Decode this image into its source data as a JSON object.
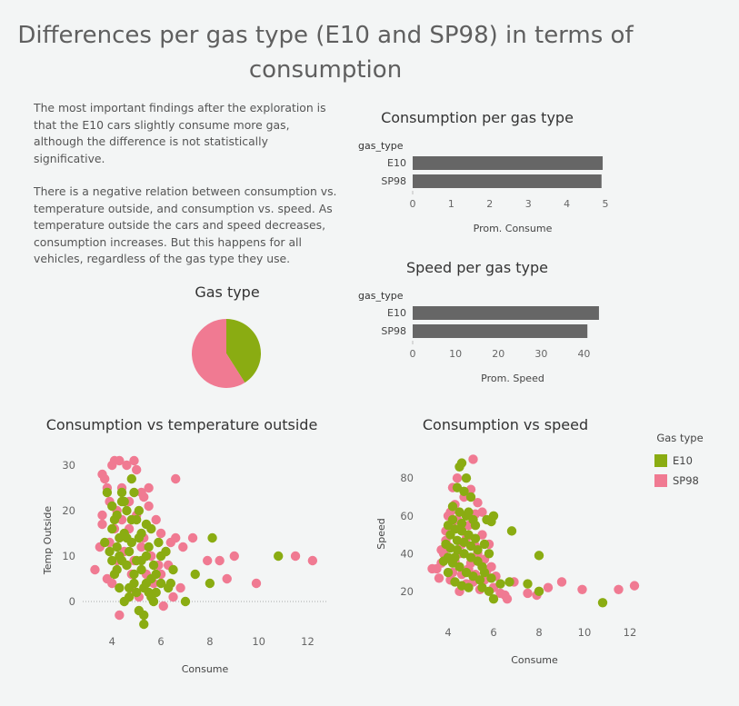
{
  "page": {
    "title_line1": "Differences per gas type (E10 and SP98) in terms of",
    "title_line2": "consumption",
    "paragraph1": "The most important findings after the exploration is that the E10 cars slightly consume more gas, although the difference is not statistically significative.",
    "paragraph2": "There is a negative relation between consumption vs. temperature outside, and consumption vs. speed. As temperature outside the cars and speed decreases, consumption increases. But this happens for all vehicles, regardless of the gas type they use."
  },
  "colors": {
    "E10": "#8aac12",
    "SP98": "#f07a92",
    "bar": "#666666",
    "axis": "#999999"
  },
  "legend": {
    "title": "Gas type",
    "items": [
      {
        "label": "E10",
        "color": "#8aac12"
      },
      {
        "label": "SP98",
        "color": "#f07a92"
      }
    ]
  },
  "chart_data": [
    {
      "id": "consumption_bar",
      "type": "bar",
      "orientation": "horizontal",
      "title": "Consumption per gas type",
      "row_header": "gas_type",
      "categories": [
        "E10",
        "SP98"
      ],
      "values": [
        4.93,
        4.9
      ],
      "xlabel": "Prom. Consume",
      "xlim": [
        0,
        5
      ],
      "xticks": [
        "0",
        "1",
        "2",
        "3",
        "4",
        "5"
      ]
    },
    {
      "id": "speed_bar",
      "type": "bar",
      "orientation": "horizontal",
      "title": "Speed per gas type",
      "row_header": "gas_type",
      "categories": [
        "E10",
        "SP98"
      ],
      "values": [
        43.5,
        40.8
      ],
      "xlabel": "Prom. Speed",
      "xlim": [
        0,
        45
      ],
      "xticks": [
        "0",
        "10",
        "20",
        "30",
        "40"
      ]
    },
    {
      "id": "gas_pie",
      "type": "pie",
      "title": "Gas type",
      "slices": [
        {
          "label": "E10",
          "value": 41
        },
        {
          "label": "SP98",
          "value": 59
        }
      ]
    },
    {
      "id": "temp_scatter",
      "type": "scatter",
      "title": "Consumption vs temperature outside",
      "xlabel": "Consume",
      "ylabel": "Temp Outside",
      "xlim": [
        2.8,
        12.8
      ],
      "ylim": [
        -6,
        33
      ],
      "xticks": [
        "4",
        "6",
        "8",
        "10",
        "12"
      ],
      "yticks": [
        "0",
        "10",
        "20",
        "30"
      ],
      "series": [
        {
          "name": "E10",
          "points": [
            [
              3.8,
              24
            ],
            [
              4.0,
              21
            ],
            [
              4.1,
              18
            ],
            [
              4.2,
              12
            ],
            [
              4.3,
              10
            ],
            [
              4.4,
              22
            ],
            [
              4.5,
              15
            ],
            [
              4.6,
              8
            ],
            [
              4.7,
              11
            ],
            [
              4.8,
              13
            ],
            [
              4.9,
              6
            ],
            [
              5.0,
              9
            ],
            [
              5.1,
              14
            ],
            [
              5.2,
              7
            ],
            [
              5.3,
              3
            ],
            [
              5.4,
              10
            ],
            [
              5.5,
              12
            ],
            [
              5.6,
              5
            ],
            [
              5.7,
              8
            ],
            [
              5.8,
              2
            ],
            [
              4.0,
              16
            ],
            [
              4.2,
              19
            ],
            [
              4.4,
              24
            ],
            [
              4.6,
              20
            ],
            [
              4.8,
              27
            ],
            [
              5.0,
              18
            ],
            [
              5.2,
              15
            ],
            [
              4.1,
              6
            ],
            [
              4.3,
              3
            ],
            [
              4.5,
              0
            ],
            [
              4.7,
              1
            ],
            [
              4.9,
              4
            ],
            [
              5.1,
              -2
            ],
            [
              5.3,
              -3
            ],
            [
              5.3,
              -5
            ],
            [
              5.5,
              2
            ],
            [
              5.7,
              0
            ],
            [
              6.0,
              4
            ],
            [
              6.3,
              3
            ],
            [
              7.0,
              0
            ],
            [
              7.4,
              6
            ],
            [
              8.0,
              4
            ],
            [
              8.1,
              14
            ],
            [
              10.8,
              10
            ],
            [
              3.9,
              11
            ],
            [
              4.4,
              9
            ],
            [
              4.6,
              14
            ],
            [
              4.8,
              18
            ],
            [
              5.0,
              2
            ],
            [
              5.2,
              9
            ],
            [
              5.4,
              17
            ],
            [
              5.6,
              16
            ],
            [
              5.9,
              13
            ],
            [
              6.2,
              11
            ],
            [
              3.7,
              13
            ],
            [
              4.0,
              9
            ],
            [
              4.3,
              14
            ],
            [
              4.9,
              24
            ],
            [
              5.1,
              20
            ],
            [
              5.6,
              1
            ],
            [
              5.8,
              6
            ],
            [
              6.0,
              10
            ],
            [
              6.5,
              7
            ],
            [
              4.5,
              22
            ],
            [
              4.2,
              7
            ],
            [
              4.7,
              3
            ],
            [
              5.4,
              4
            ],
            [
              6.4,
              4
            ]
          ]
        },
        {
          "name": "SP98",
          "points": [
            [
              3.3,
              7
            ],
            [
              3.6,
              28
            ],
            [
              3.8,
              25
            ],
            [
              4.0,
              30
            ],
            [
              4.1,
              31
            ],
            [
              4.3,
              31
            ],
            [
              4.6,
              30
            ],
            [
              4.9,
              31
            ],
            [
              5.0,
              29
            ],
            [
              3.7,
              27
            ],
            [
              3.9,
              22
            ],
            [
              4.2,
              20
            ],
            [
              4.4,
              18
            ],
            [
              4.7,
              16
            ],
            [
              5.0,
              19
            ],
            [
              5.3,
              23
            ],
            [
              5.5,
              21
            ],
            [
              5.8,
              18
            ],
            [
              6.0,
              15
            ],
            [
              6.4,
              13
            ],
            [
              6.6,
              27
            ],
            [
              6.9,
              12
            ],
            [
              7.3,
              14
            ],
            [
              7.9,
              9
            ],
            [
              8.4,
              9
            ],
            [
              9.0,
              10
            ],
            [
              8.7,
              5
            ],
            [
              9.9,
              4
            ],
            [
              11.5,
              10
            ],
            [
              12.2,
              9
            ],
            [
              4.0,
              4
            ],
            [
              4.3,
              -3
            ],
            [
              4.6,
              8
            ],
            [
              4.8,
              3
            ],
            [
              5.1,
              1
            ],
            [
              5.4,
              6
            ],
            [
              5.7,
              4
            ],
            [
              6.1,
              -1
            ],
            [
              6.5,
              1
            ],
            [
              6.3,
              8
            ],
            [
              3.6,
              19
            ],
            [
              3.9,
              13
            ],
            [
              4.2,
              9
            ],
            [
              4.5,
              11
            ],
            [
              4.8,
              6
            ],
            [
              5.2,
              12
            ],
            [
              5.6,
              10
            ],
            [
              5.9,
              8
            ],
            [
              6.2,
              11
            ],
            [
              6.6,
              14
            ],
            [
              3.5,
              12
            ],
            [
              3.8,
              5
            ],
            [
              4.4,
              25
            ],
            [
              4.7,
              22
            ],
            [
              5.2,
              24
            ],
            [
              5.5,
              25
            ],
            [
              3.6,
              17
            ],
            [
              4.1,
              16
            ],
            [
              4.9,
              9
            ],
            [
              5.3,
              14
            ],
            [
              6.8,
              3
            ],
            [
              6.0,
              6
            ]
          ]
        }
      ]
    },
    {
      "id": "speed_scatter",
      "type": "scatter",
      "title": "Consumption vs speed",
      "xlabel": "Consume",
      "ylabel": "Speed",
      "xlim": [
        2.8,
        12.8
      ],
      "ylim": [
        5,
        96
      ],
      "xticks": [
        "4",
        "6",
        "8",
        "10",
        "12"
      ],
      "yticks": [
        "20",
        "40",
        "60",
        "80"
      ],
      "series": [
        {
          "name": "E10",
          "points": [
            [
              4.6,
              88
            ],
            [
              4.5,
              86
            ],
            [
              4.8,
              80
            ],
            [
              4.4,
              75
            ],
            [
              4.7,
              73
            ],
            [
              5.0,
              70
            ],
            [
              4.2,
              65
            ],
            [
              4.5,
              62
            ],
            [
              4.8,
              60
            ],
            [
              5.1,
              58
            ],
            [
              4.0,
              55
            ],
            [
              4.3,
              53
            ],
            [
              4.6,
              52
            ],
            [
              4.9,
              50
            ],
            [
              5.2,
              48
            ],
            [
              3.9,
              45
            ],
            [
              4.1,
              43
            ],
            [
              4.4,
              42
            ],
            [
              4.7,
              40
            ],
            [
              5.0,
              38
            ],
            [
              5.3,
              36
            ],
            [
              4.0,
              38
            ],
            [
              4.2,
              35
            ],
            [
              4.5,
              33
            ],
            [
              4.8,
              30
            ],
            [
              5.1,
              28
            ],
            [
              5.4,
              26
            ],
            [
              4.3,
              25
            ],
            [
              4.6,
              23
            ],
            [
              4.9,
              22
            ],
            [
              5.5,
              22
            ],
            [
              5.8,
              20
            ],
            [
              6.0,
              16
            ],
            [
              6.7,
              25
            ],
            [
              7.5,
              24
            ],
            [
              8.0,
              20
            ],
            [
              8.0,
              39
            ],
            [
              10.8,
              14
            ],
            [
              5.6,
              45
            ],
            [
              5.8,
              40
            ],
            [
              6.0,
              60
            ],
            [
              5.9,
              57
            ],
            [
              6.8,
              52
            ],
            [
              4.1,
              50
            ],
            [
              4.4,
              47
            ],
            [
              4.7,
              46
            ],
            [
              5.0,
              44
            ],
            [
              5.3,
              42
            ],
            [
              5.6,
              30
            ],
            [
              5.9,
              27
            ],
            [
              6.3,
              24
            ],
            [
              3.8,
              36
            ],
            [
              4.0,
              30
            ],
            [
              4.2,
              58
            ],
            [
              4.9,
              62
            ],
            [
              5.2,
              55
            ],
            [
              5.5,
              33
            ],
            [
              4.3,
              38
            ],
            [
              4.6,
              56
            ],
            [
              5.7,
              58
            ]
          ]
        },
        {
          "name": "SP98",
          "points": [
            [
              5.1,
              90
            ],
            [
              4.4,
              80
            ],
            [
              4.2,
              75
            ],
            [
              4.7,
              70
            ],
            [
              5.3,
              67
            ],
            [
              4.0,
              60
            ],
            [
              4.4,
              58
            ],
            [
              4.9,
              55
            ],
            [
              5.5,
              50
            ],
            [
              5.8,
              45
            ],
            [
              3.5,
              32
            ],
            [
              3.6,
              27
            ],
            [
              3.8,
              40
            ],
            [
              4.0,
              44
            ],
            [
              4.2,
              30
            ],
            [
              4.5,
              20
            ],
            [
              4.8,
              24
            ],
            [
              5.0,
              35
            ],
            [
              5.3,
              40
            ],
            [
              5.6,
              26
            ],
            [
              6.0,
              22
            ],
            [
              6.3,
              19
            ],
            [
              6.6,
              16
            ],
            [
              6.9,
              25
            ],
            [
              7.5,
              19
            ],
            [
              7.9,
              18
            ],
            [
              8.4,
              22
            ],
            [
              9.0,
              25
            ],
            [
              9.9,
              21
            ],
            [
              11.5,
              21
            ],
            [
              12.2,
              23
            ],
            [
              3.3,
              32
            ],
            [
              3.9,
              47
            ],
            [
              4.1,
              62
            ],
            [
              4.3,
              36
            ],
            [
              4.6,
              29
            ],
            [
              5.1,
              25
            ],
            [
              5.4,
              21
            ],
            [
              5.7,
              31
            ],
            [
              6.1,
              28
            ],
            [
              6.5,
              18
            ],
            [
              3.7,
              42
            ],
            [
              4.2,
              54
            ],
            [
              4.8,
              48
            ],
            [
              5.2,
              44
            ],
            [
              5.6,
              37
            ],
            [
              5.9,
              33
            ],
            [
              4.1,
              26
            ],
            [
              4.5,
              40
            ],
            [
              4.9,
              32
            ],
            [
              5.2,
              29
            ],
            [
              3.9,
              52
            ],
            [
              4.3,
              66
            ],
            [
              5.0,
              74
            ],
            [
              5.2,
              61
            ],
            [
              5.5,
              62
            ],
            [
              4.6,
              45
            ],
            [
              3.7,
              35
            ]
          ]
        }
      ]
    }
  ]
}
